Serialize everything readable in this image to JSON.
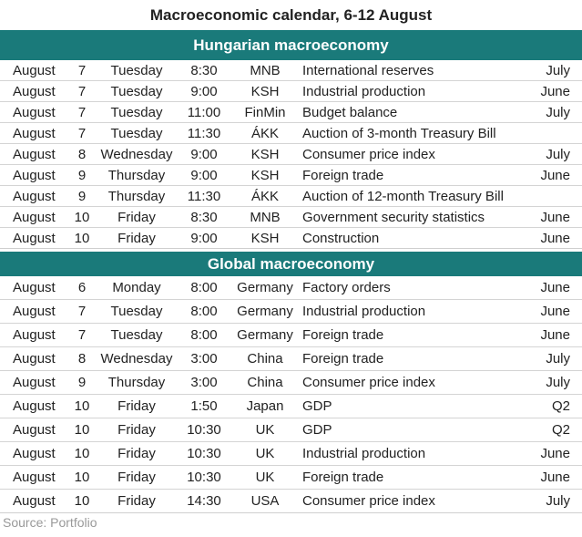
{
  "title": "Macroeconomic calendar, 6-12 August",
  "colors": {
    "header_bg": "#1a7a7a",
    "header_text": "#ffffff",
    "divider": "#d4d4d4"
  },
  "hungarian": {
    "heading": "Hungarian macroeconomy",
    "rows": [
      {
        "month": "August",
        "day": "7",
        "weekday": "Tuesday",
        "time": "8:30",
        "source": "MNB",
        "event": "International reserves",
        "period": "July"
      },
      {
        "month": "August",
        "day": "7",
        "weekday": "Tuesday",
        "time": "9:00",
        "source": "KSH",
        "event": "Industrial production",
        "period": "June"
      },
      {
        "month": "August",
        "day": "7",
        "weekday": "Tuesday",
        "time": "11:00",
        "source": "FinMin",
        "event": "Budget balance",
        "period": "July"
      },
      {
        "month": "August",
        "day": "7",
        "weekday": "Tuesday",
        "time": "11:30",
        "source": "ÁKK",
        "event": "Auction of 3-month Treasury Bill",
        "period": ""
      },
      {
        "month": "August",
        "day": "8",
        "weekday": "Wednesday",
        "time": "9:00",
        "source": "KSH",
        "event": "Consumer price index",
        "period": "July"
      },
      {
        "month": "August",
        "day": "9",
        "weekday": "Thursday",
        "time": "9:00",
        "source": "KSH",
        "event": "Foreign trade",
        "period": "June"
      },
      {
        "month": "August",
        "day": "9",
        "weekday": "Thursday",
        "time": "11:30",
        "source": "ÁKK",
        "event": "Auction of 12-month Treasury Bill",
        "period": ""
      },
      {
        "month": "August",
        "day": "10",
        "weekday": "Friday",
        "time": "8:30",
        "source": "MNB",
        "event": "Government security statistics",
        "period": "June"
      },
      {
        "month": "August",
        "day": "10",
        "weekday": "Friday",
        "time": "9:00",
        "source": "KSH",
        "event": "Construction",
        "period": "June"
      }
    ]
  },
  "global": {
    "heading": "Global macroeconomy",
    "rows": [
      {
        "month": "August",
        "day": "6",
        "weekday": "Monday",
        "time": "8:00",
        "source": "Germany",
        "event": "Factory orders",
        "period": "June"
      },
      {
        "month": "August",
        "day": "7",
        "weekday": "Tuesday",
        "time": "8:00",
        "source": "Germany",
        "event": "Industrial production",
        "period": "June"
      },
      {
        "month": "August",
        "day": "7",
        "weekday": "Tuesday",
        "time": "8:00",
        "source": "Germany",
        "event": "Foreign trade",
        "period": "June"
      },
      {
        "month": "August",
        "day": "8",
        "weekday": "Wednesday",
        "time": "3:00",
        "source": "China",
        "event": "Foreign trade",
        "period": "July"
      },
      {
        "month": "August",
        "day": "9",
        "weekday": "Thursday",
        "time": "3:00",
        "source": "China",
        "event": "Consumer price index",
        "period": "July"
      },
      {
        "month": "August",
        "day": "10",
        "weekday": "Friday",
        "time": "1:50",
        "source": "Japan",
        "event": "GDP",
        "period": "Q2"
      },
      {
        "month": "August",
        "day": "10",
        "weekday": "Friday",
        "time": "10:30",
        "source": "UK",
        "event": "GDP",
        "period": "Q2"
      },
      {
        "month": "August",
        "day": "10",
        "weekday": "Friday",
        "time": "10:30",
        "source": "UK",
        "event": "Industrial production",
        "period": "June"
      },
      {
        "month": "August",
        "day": "10",
        "weekday": "Friday",
        "time": "10:30",
        "source": "UK",
        "event": "Foreign trade",
        "period": "June"
      },
      {
        "month": "August",
        "day": "10",
        "weekday": "Friday",
        "time": "14:30",
        "source": "USA",
        "event": "Consumer price index",
        "period": "July"
      }
    ]
  },
  "source_note": "Source: Portfolio"
}
